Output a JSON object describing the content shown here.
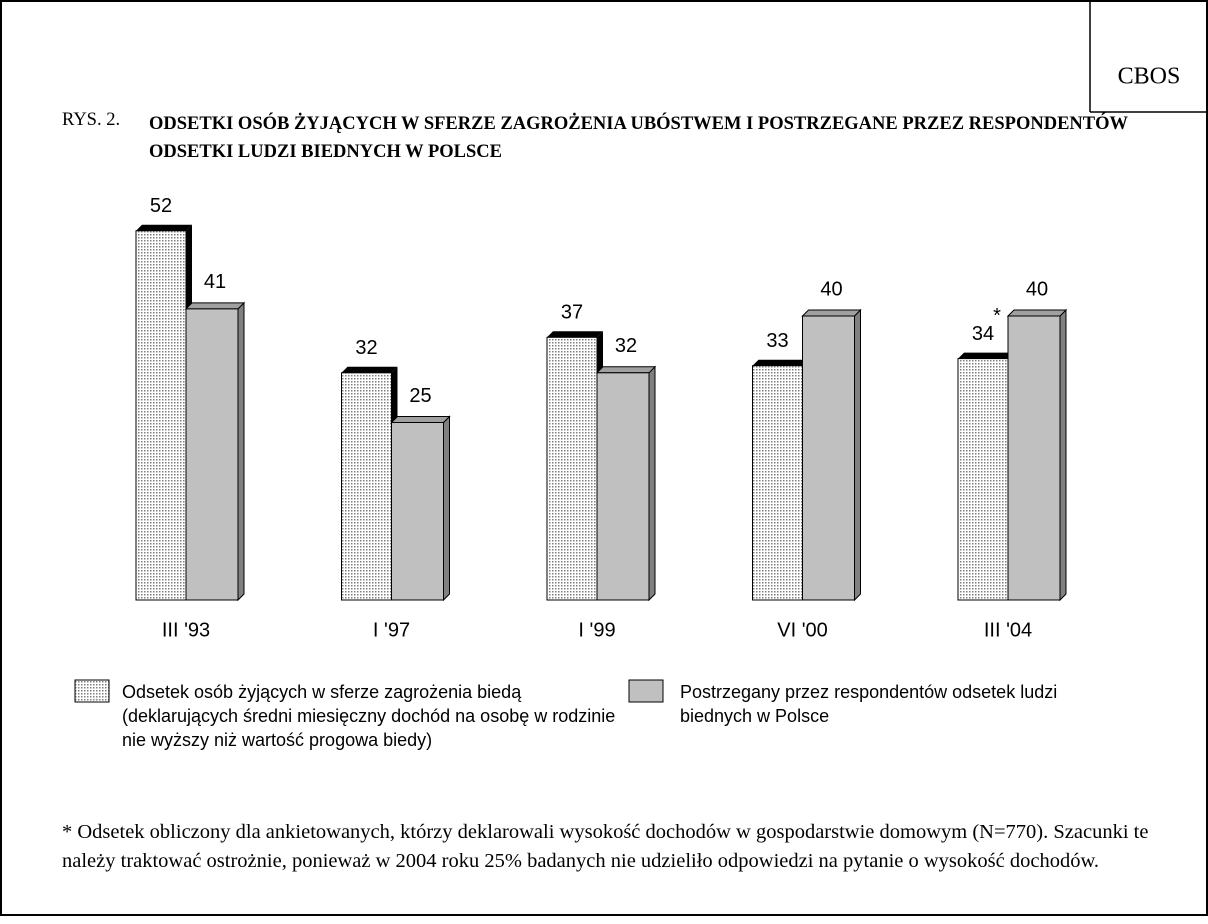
{
  "chart_data": {
    "type": "bar",
    "brand": "CBOS",
    "title_prefix": "RYS. 2.",
    "title": "ODSETKI OSÓB ŻYJĄCYCH W SFERZE ZAGROŻENIA UBÓSTWEM I POSTRZEGANE PRZEZ RESPONDENTÓW ODSETKI LUDZI BIEDNYCH W POLSCE",
    "categories": [
      "III '93",
      "I '97",
      "I '99",
      "VI '00",
      "III '04"
    ],
    "series": [
      {
        "name": "Odsetek osób żyjących w sferze zagrożenia biedą (deklarujących średni miesięczny dochód na osobę w rodzinie nie wyższy niż wartość progowa biedy)",
        "color": "#808080",
        "values": [
          52,
          32,
          37,
          33,
          34
        ]
      },
      {
        "name": "Postrzegany przez respondentów odsetek ludzi biednych w Polsce",
        "color": "#c0c0c0",
        "values": [
          41,
          25,
          32,
          40,
          40
        ]
      }
    ],
    "annotation": "*",
    "footnote": "* Odsetek obliczony dla ankietowanych, którzy deklarowali wysokość dochodów w gospodarstwie domowym (N=770). Szacunki te należy traktować ostrożnie, ponieważ w 2004 roku 25% badanych nie udzieliło odpowiedzi na pytanie o wysokość dochodów."
  }
}
